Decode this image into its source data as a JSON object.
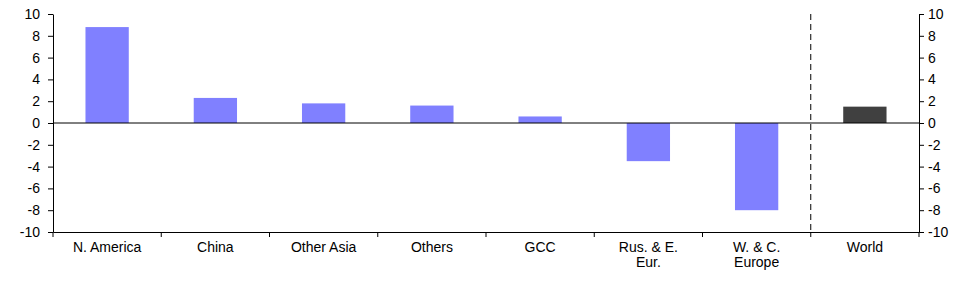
{
  "chart_data": {
    "type": "bar",
    "categories": [
      "N. America",
      "China",
      "Other Asia",
      "Others",
      "GCC",
      "Rus. & E. Eur.",
      "W. & C. Europe",
      "World"
    ],
    "values": [
      8.8,
      2.3,
      1.8,
      1.6,
      0.6,
      -3.5,
      -8.0,
      1.5
    ],
    "colors": [
      "#8080ff",
      "#8080ff",
      "#8080ff",
      "#8080ff",
      "#8080ff",
      "#8080ff",
      "#8080ff",
      "#404040"
    ],
    "ylim": [
      -10,
      10
    ],
    "yticks": [
      -10,
      -8,
      -6,
      -4,
      -2,
      0,
      2,
      4,
      6,
      8,
      10
    ],
    "grid": false
  }
}
